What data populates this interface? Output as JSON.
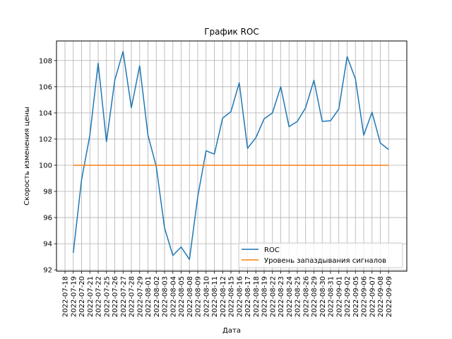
{
  "chart_data": {
    "type": "line",
    "title": "График ROC",
    "xlabel": "Дата",
    "ylabel": "Скорость изменения цены",
    "x": [
      "2022-07-19",
      "2022-07-20",
      "2022-07-21",
      "2022-07-22",
      "2022-07-25",
      "2022-07-26",
      "2022-07-27",
      "2022-07-28",
      "2022-07-29",
      "2022-08-01",
      "2022-08-02",
      "2022-08-03",
      "2022-08-04",
      "2022-08-05",
      "2022-08-08",
      "2022-08-09",
      "2022-08-10",
      "2022-08-11",
      "2022-08-12",
      "2022-08-15",
      "2022-08-16",
      "2022-08-17",
      "2022-08-18",
      "2022-08-19",
      "2022-08-22",
      "2022-08-23",
      "2022-08-24",
      "2022-08-25",
      "2022-08-26",
      "2022-08-29",
      "2022-08-30",
      "2022-08-31",
      "2022-09-01",
      "2022-09-02",
      "2022-09-05",
      "2022-09-06",
      "2022-09-07",
      "2022-09-08",
      "2022-09-09"
    ],
    "x_tick_labels": [
      "2022-07-18",
      "2022-07-19",
      "2022-07-20",
      "2022-07-21",
      "2022-07-22",
      "2022-07-25",
      "2022-07-26",
      "2022-07-27",
      "2022-07-28",
      "2022-07-29",
      "2022-08-01",
      "2022-08-02",
      "2022-08-03",
      "2022-08-04",
      "2022-08-05",
      "2022-08-08",
      "2022-08-09",
      "2022-08-10",
      "2022-08-11",
      "2022-08-12",
      "2022-08-15",
      "2022-08-16",
      "2022-08-17",
      "2022-08-18",
      "2022-08-19",
      "2022-08-22",
      "2022-08-23",
      "2022-08-24",
      "2022-08-25",
      "2022-08-26",
      "2022-08-29",
      "2022-08-30",
      "2022-08-31",
      "2022-09-01",
      "2022-09-02",
      "2022-09-05",
      "2022-09-06",
      "2022-09-07",
      "2022-09-08",
      "2022-09-09"
    ],
    "series": [
      {
        "name": "ROC",
        "color": "#1f77b4",
        "values": [
          93.3,
          98.9,
          102.3,
          107.8,
          101.8,
          106.5,
          108.7,
          104.4,
          107.6,
          102.3,
          99.9,
          95.2,
          93.1,
          93.75,
          92.8,
          97.6,
          101.1,
          100.85,
          103.6,
          104.1,
          106.3,
          101.3,
          102.1,
          103.55,
          104.0,
          106.0,
          102.95,
          103.35,
          104.4,
          106.5,
          103.35,
          103.4,
          104.3,
          108.3,
          106.6,
          102.3,
          104.05,
          101.7,
          101.2
        ]
      },
      {
        "name": "Уровень запаздывания сигналов",
        "color": "#ff7f0e",
        "values": [
          100,
          100,
          100,
          100,
          100,
          100,
          100,
          100,
          100,
          100,
          100,
          100,
          100,
          100,
          100,
          100,
          100,
          100,
          100,
          100,
          100,
          100,
          100,
          100,
          100,
          100,
          100,
          100,
          100,
          100,
          100,
          100,
          100,
          100,
          100,
          100,
          100,
          100,
          100
        ]
      }
    ],
    "y_ticks": [
      92,
      94,
      96,
      98,
      100,
      102,
      104,
      106,
      108
    ],
    "ylim": [
      91.9,
      109.5
    ],
    "grid": true,
    "legend_position": "lower-right"
  }
}
